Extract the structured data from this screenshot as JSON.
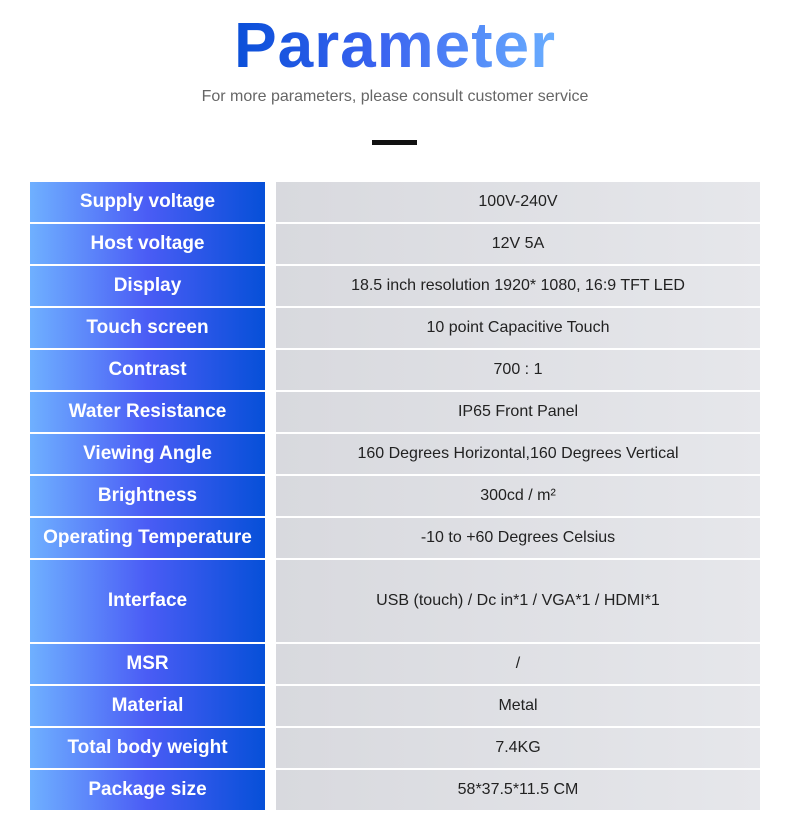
{
  "header": {
    "title": "Parameter",
    "subtitle": "For more parameters, please consult customer service"
  },
  "rows": [
    {
      "label": "Supply voltage",
      "value": "100V-240V"
    },
    {
      "label": "Host voltage",
      "value": "12V 5A"
    },
    {
      "label": "Display",
      "value": "18.5 inch resolution 1920* 1080, 16:9 TFT LED"
    },
    {
      "label": "Touch screen",
      "value": "10 point Capacitive Touch"
    },
    {
      "label": "Contrast",
      "value": "700 : 1"
    },
    {
      "label": "Water Resistance",
      "value": "IP65 Front Panel"
    },
    {
      "label": "Viewing Angle",
      "value": "160 Degrees Horizontal,160 Degrees Vertical"
    },
    {
      "label": "Brightness",
      "value": "300cd / m²"
    },
    {
      "label": "Operating Temperature",
      "value": "-10 to +60 Degrees Celsius"
    },
    {
      "label": "Interface",
      "value": "USB (touch) / Dc in*1 / VGA*1 / HDMI*1"
    },
    {
      "label": "MSR",
      "value": "/"
    },
    {
      "label": "Material",
      "value": "Metal"
    },
    {
      "label": "Total body weight",
      "value": "7.4KG"
    },
    {
      "label": "Package size",
      "value": "58*37.5*11.5 CM"
    }
  ]
}
